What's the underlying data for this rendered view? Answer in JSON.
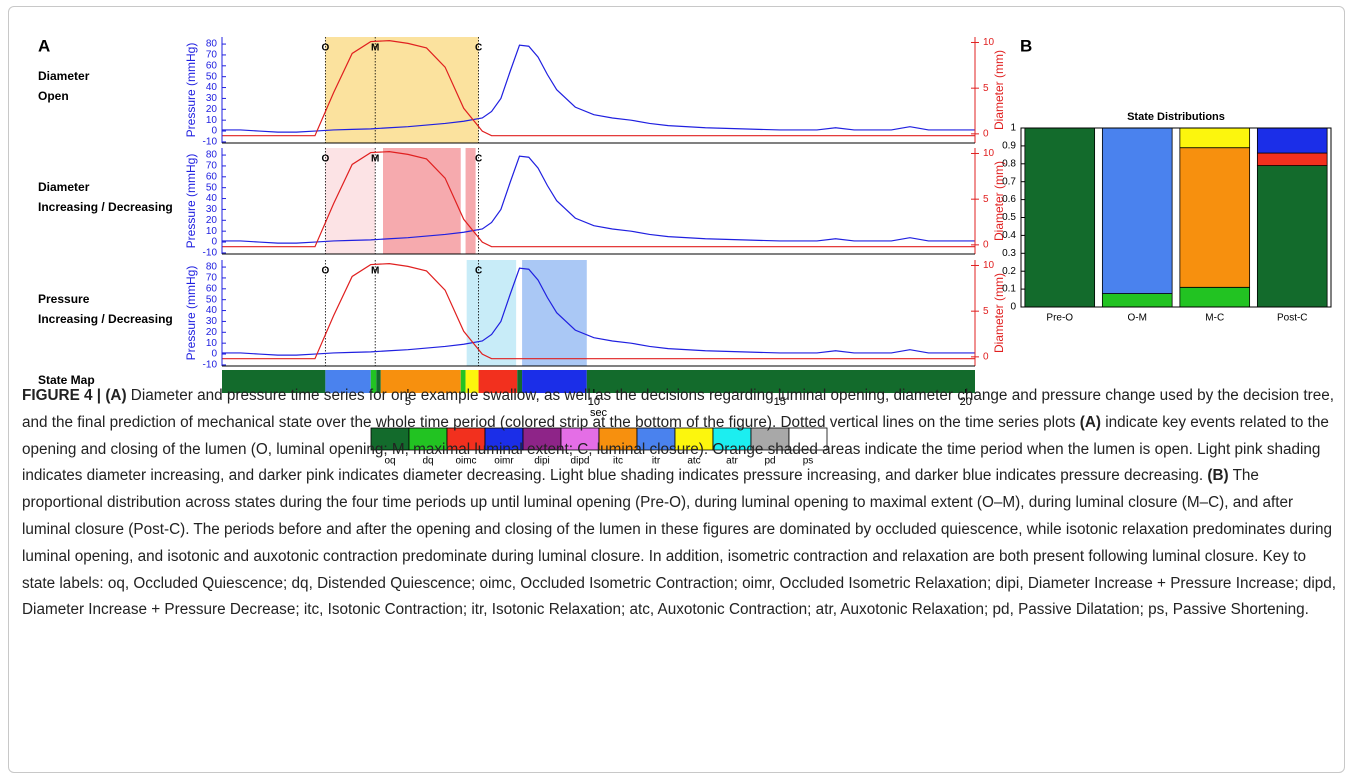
{
  "chart_data": [
    {
      "type": "line",
      "label": "A",
      "x": [
        0,
        0.5,
        1,
        1.5,
        2,
        2.5,
        3,
        3.5,
        4,
        4.5,
        5,
        5.5,
        6,
        6.5,
        7,
        7.25,
        7.5,
        7.75,
        8,
        8.25,
        8.5,
        8.75,
        9,
        9.5,
        10,
        10.5,
        11,
        11.5,
        12,
        13,
        14,
        15,
        16,
        16.5,
        17,
        18,
        18.5,
        19,
        20,
        20.25
      ],
      "xlim": [
        0,
        20.25
      ],
      "xticks": [
        5,
        10,
        15,
        20
      ],
      "xlabel": "sec",
      "ylabel": "Pressure (mmHg)",
      "ylim": [
        -11,
        86.5
      ],
      "yticks": [
        -10,
        0,
        10,
        20,
        30,
        40,
        50,
        60,
        70,
        80
      ],
      "y2label": "Diameter (mm)",
      "y2lim": [
        -1,
        10.6
      ],
      "y2ticks": [
        0,
        5,
        10
      ],
      "series": [
        {
          "color": "#2020e0",
          "values": [
            1,
            1,
            0,
            -1,
            -1,
            0,
            1,
            1.5,
            2,
            3,
            4,
            5.5,
            7,
            9,
            12,
            18,
            30,
            55,
            79,
            78,
            68,
            52,
            38,
            22,
            15,
            12,
            10,
            7,
            5,
            3,
            2,
            1,
            1,
            3,
            1,
            1,
            4,
            1,
            1,
            1
          ]
        },
        {
          "color": "#e02020",
          "axis": "y2",
          "values": [
            -0.2,
            -0.2,
            -0.2,
            -0.2,
            -0.2,
            -0.2,
            4.5,
            8.8,
            10.1,
            10.2,
            9.9,
            9.4,
            7.3,
            2.8,
            0.3,
            -0.2,
            -0.2,
            -0.2,
            -0.2,
            -0.2,
            -0.2,
            -0.2,
            -0.2,
            -0.2,
            -0.2,
            -0.2,
            -0.2,
            -0.2,
            -0.2,
            -0.2,
            -0.2,
            -0.2,
            -0.2,
            -0.2,
            -0.2,
            -0.2,
            -0.2,
            -0.2,
            -0.2,
            -0.2
          ]
        }
      ],
      "events": [
        {
          "label": "O",
          "x": 2.78
        },
        {
          "label": "M",
          "x": 4.12
        },
        {
          "label": "C",
          "x": 6.9
        }
      ],
      "panels": [
        {
          "title": [
            "Diameter",
            "Open"
          ],
          "shading": [
            {
              "start": 2.78,
              "end": 6.9,
              "color": "#fbe29e"
            }
          ]
        },
        {
          "title": [
            "Diameter",
            "Increasing / Decreasing"
          ],
          "shading": [
            {
              "start": 2.78,
              "end": 4.12,
              "color": "#fce3e5"
            },
            {
              "start": 4.33,
              "end": 6.42,
              "color": "#f6aaae"
            },
            {
              "start": 6.55,
              "end": 6.82,
              "color": "#f6aaae"
            }
          ]
        },
        {
          "title": [
            "Pressure",
            "Increasing / Decreasing"
          ],
          "shading": [
            {
              "start": 6.58,
              "end": 7.91,
              "color": "#c8ecf8"
            },
            {
              "start": 8.07,
              "end": 9.81,
              "color": "#aac8f5"
            }
          ]
        }
      ],
      "state_map": {
        "label": "State Map",
        "segments": [
          {
            "state": "oq",
            "start": 0,
            "end": 2.78
          },
          {
            "state": "itr",
            "start": 2.78,
            "end": 4.0
          },
          {
            "state": "dq",
            "start": 4.0,
            "end": 4.15
          },
          {
            "state": "oq",
            "start": 4.15,
            "end": 4.27
          },
          {
            "state": "itc",
            "start": 4.27,
            "end": 6.42
          },
          {
            "state": "dq",
            "start": 6.42,
            "end": 6.55
          },
          {
            "state": "atc",
            "start": 6.55,
            "end": 6.9
          },
          {
            "state": "oimc",
            "start": 6.9,
            "end": 7.94
          },
          {
            "state": "oq",
            "start": 7.94,
            "end": 8.07
          },
          {
            "state": "oimr",
            "start": 8.07,
            "end": 9.81
          },
          {
            "state": "oq",
            "start": 9.81,
            "end": 20.25
          }
        ]
      },
      "legend": {
        "states": [
          {
            "name": "oq",
            "color": "#136b2c"
          },
          {
            "name": "dq",
            "color": "#22c322"
          },
          {
            "name": "oimc",
            "color": "#f2301e"
          },
          {
            "name": "oimr",
            "color": "#1b2ee8"
          },
          {
            "name": "dipi",
            "color": "#8e2488"
          },
          {
            "name": "dipd",
            "color": "#e46ee6"
          },
          {
            "name": "itc",
            "color": "#f7900e"
          },
          {
            "name": "itr",
            "color": "#4a82ee"
          },
          {
            "name": "atc",
            "color": "#fcf60d"
          },
          {
            "name": "atr",
            "color": "#1ceef0"
          },
          {
            "name": "pd",
            "color": "#a8a8a8"
          },
          {
            "name": "ps",
            "color": "#ffffff"
          }
        ]
      }
    },
    {
      "type": "stacked-bar",
      "label": "B",
      "title": "State Distributions",
      "categories": [
        "Pre-O",
        "O-M",
        "M-C",
        "Post-C"
      ],
      "ylim": [
        0,
        1
      ],
      "yticks": [
        0,
        0.1,
        0.2,
        0.3,
        0.4,
        0.5,
        0.6,
        0.7,
        0.8,
        0.9,
        1
      ],
      "series": [
        {
          "name": "oq",
          "values": [
            1,
            0,
            0,
            0.79
          ]
        },
        {
          "name": "dq",
          "values": [
            0,
            0.075,
            0.11,
            0
          ]
        },
        {
          "name": "oimc",
          "values": [
            0,
            0,
            0,
            0.07
          ]
        },
        {
          "name": "oimr",
          "values": [
            0,
            0,
            0,
            0.14
          ]
        },
        {
          "name": "itc",
          "values": [
            0,
            0,
            0.78,
            0
          ]
        },
        {
          "name": "itr",
          "values": [
            0,
            0.925,
            0,
            0
          ]
        },
        {
          "name": "atc",
          "values": [
            0,
            0,
            0.11,
            0
          ]
        }
      ]
    }
  ],
  "caption": [
    {
      "text": "FIGURE 4 | (A)",
      "bold": true
    },
    {
      "text": " Diameter and pressure time series for one example swallow, as well as the decisions regarding luminal opening, diameter change and pressure change used by the decision tree, and the final prediction of mechanical state over the whole time period (colored strip at the bottom of the figure). Dotted vertical lines on the time series plots ",
      "bold": false
    },
    {
      "text": "(A)",
      "bold": true
    },
    {
      "text": " indicate key events related to the opening and closing of the lumen (O, luminal opening; M, maximal luminal extent; C, luminal closure). Orange shaded areas indicate the time period when the lumen is open. Light pink shading indicates diameter increasing, and darker pink indicates diameter decreasing. Light blue shading indicates pressure increasing, and darker blue indicates pressure decreasing. ",
      "bold": false
    },
    {
      "text": "(B)",
      "bold": true
    },
    {
      "text": " The proportional distribution across states during the four time periods up until luminal opening (Pre-O), during luminal opening to maximal extent (O–M), during luminal closure (M–C), and after luminal closure (Post-C). The periods before and after the opening and closing of the lumen in these figures are dominated by occluded quiescence, while isotonic relaxation predominates during luminal opening, and isotonic and auxotonic contraction predominate during luminal closure. In addition, isometric contraction and relaxation are both present following luminal closure. Key to state labels: oq, Occluded Quiescence; dq, Distended Quiescence; oimc, Occluded Isometric Contraction; oimr, Occluded Isometric Relaxation; dipi, Diameter Increase + Pressure Increase; dipd, Diameter Increase + Pressure Decrease; itc, Isotonic Contraction; itr, Isotonic Relaxation; atc, Auxotonic Contraction; atr, Auxotonic Relaxation; pd, Passive Dilatation; ps, Passive Shortening.",
      "bold": false
    }
  ]
}
